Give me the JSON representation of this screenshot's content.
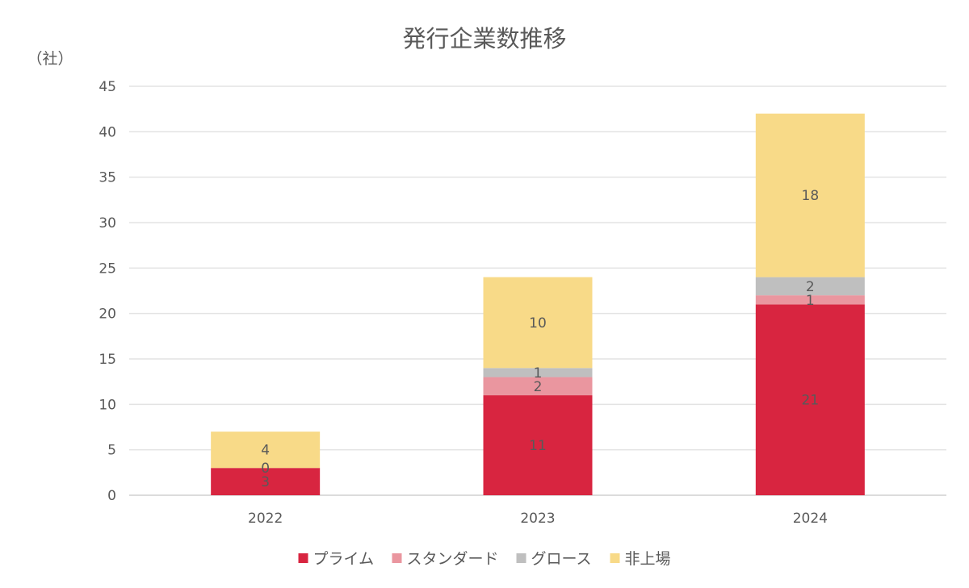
{
  "chart_data": {
    "type": "bar",
    "stacked": true,
    "title": "発行企業数推移",
    "ylabel": "（社）",
    "xlabel": "",
    "categories": [
      "2022",
      "2023",
      "2024"
    ],
    "ylim": [
      0,
      45
    ],
    "yticks": [
      0,
      5,
      10,
      15,
      20,
      25,
      30,
      35,
      40,
      45
    ],
    "grid": true,
    "legend_position": "bottom",
    "series": [
      {
        "name": "プライム",
        "color": "#D82540",
        "values": [
          3,
          11,
          21
        ]
      },
      {
        "name": "スタンダード",
        "color": "#EA969F",
        "values": [
          null,
          2,
          1
        ]
      },
      {
        "name": "グロース",
        "color": "#BFBFBF",
        "values": [
          0,
          1,
          2
        ]
      },
      {
        "name": "非上場",
        "color": "#F8DA88",
        "values": [
          4,
          10,
          18
        ]
      }
    ]
  }
}
